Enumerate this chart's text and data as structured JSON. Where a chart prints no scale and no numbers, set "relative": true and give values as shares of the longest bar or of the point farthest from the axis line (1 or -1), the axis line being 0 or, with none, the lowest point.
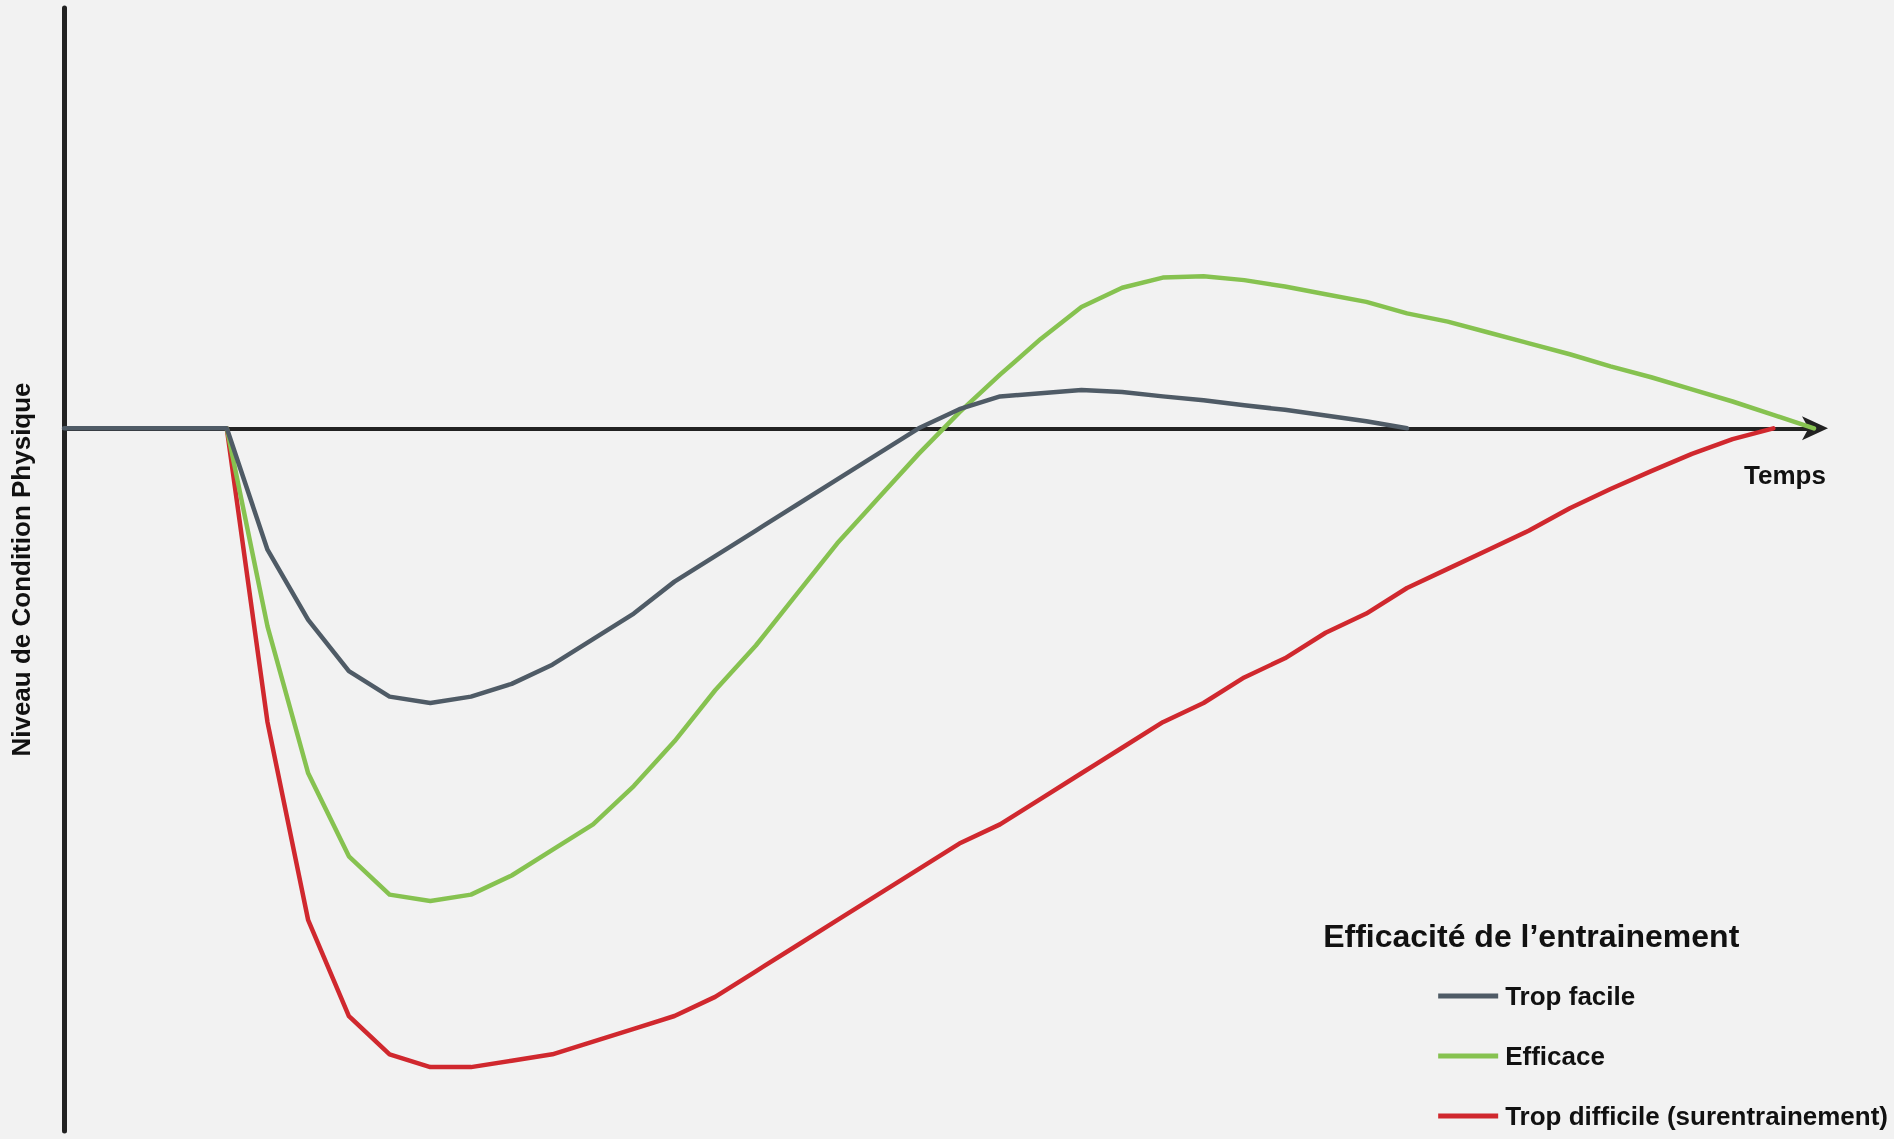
{
  "chart_data": {
    "type": "line",
    "relative": true,
    "xlabel": "Temps",
    "ylabel": "Niveau de Condition Physique",
    "legend_title": "Efficacité de l’entrainement",
    "legend": "bottom right",
    "grid": false,
    "marker": "none",
    "categories": [
      null,
      null,
      null,
      null,
      null,
      null,
      null,
      null,
      null,
      null,
      null,
      null,
      null,
      null,
      null,
      null,
      null,
      null,
      null,
      null,
      null,
      null,
      null,
      null,
      null,
      null,
      null,
      null,
      null,
      null,
      null,
      null,
      null,
      null,
      null,
      null,
      null,
      null,
      null,
      null,
      null,
      null,
      null,
      null
    ],
    "series": [
      {
        "name": "Trop facile",
        "color": "#4f5b66",
        "values": [
          0,
          0,
          0,
          0,
          0,
          -0.19,
          -0.3,
          -0.38,
          -0.42,
          -0.43,
          -0.42,
          -0.4,
          -0.37,
          -0.33,
          -0.29,
          -0.24,
          -0.2,
          -0.16,
          -0.12,
          -0.08,
          -0.04,
          0,
          0.03,
          0.05,
          0.055,
          0.06,
          0.057,
          0.05,
          0.044,
          0.036,
          0.029,
          0.02,
          0.011,
          0,
          null,
          null,
          null,
          null,
          null,
          null,
          null,
          null,
          null,
          null
        ]
      },
      {
        "name": "Efficace",
        "color": "#86c250",
        "values": [
          null,
          null,
          null,
          null,
          0,
          -0.31,
          -0.54,
          -0.67,
          -0.73,
          -0.74,
          -0.73,
          -0.7,
          -0.66,
          -0.62,
          -0.56,
          -0.49,
          -0.41,
          -0.34,
          -0.26,
          -0.18,
          -0.11,
          -0.04,
          0.025,
          0.084,
          0.14,
          0.19,
          0.22,
          0.236,
          0.238,
          0.232,
          0.222,
          0.21,
          0.198,
          0.18,
          0.167,
          0.15,
          0.133,
          0.116,
          0.097,
          0.08,
          0.061,
          0.042,
          0.021,
          0
        ]
      },
      {
        "name": "Trop difficile (surentrainement)",
        "color": "#d0282e",
        "values": [
          null,
          null,
          null,
          null,
          0,
          -0.46,
          -0.77,
          -0.92,
          -0.98,
          -1,
          -1,
          -0.99,
          -0.98,
          -0.96,
          -0.94,
          -0.92,
          -0.89,
          -0.85,
          -0.81,
          -0.77,
          -0.73,
          -0.69,
          -0.65,
          -0.62,
          -0.58,
          -0.54,
          -0.5,
          -0.46,
          -0.43,
          -0.39,
          -0.36,
          -0.32,
          -0.29,
          -0.25,
          -0.22,
          -0.19,
          -0.16,
          -0.125,
          -0.095,
          -0.067,
          -0.04,
          -0.017,
          0,
          null
        ]
      }
    ]
  }
}
